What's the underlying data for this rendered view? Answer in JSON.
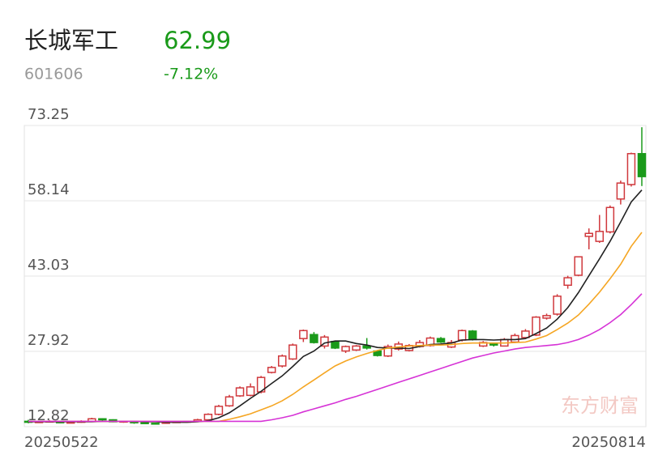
{
  "header": {
    "name": "长城军工",
    "price": "62.99",
    "code": "601606",
    "change": "-7.12%"
  },
  "chart_data": {
    "type": "candlestick",
    "categories": [
      "20250522",
      null,
      null,
      null,
      null,
      null,
      null,
      null,
      null,
      null,
      null,
      null,
      null,
      null,
      null,
      null,
      null,
      null,
      null,
      null,
      null,
      null,
      null,
      null,
      null,
      null,
      null,
      null,
      null,
      null,
      null,
      null,
      null,
      null,
      null,
      null,
      null,
      null,
      null,
      null,
      null,
      null,
      null,
      null,
      null,
      null,
      null,
      null,
      null,
      null,
      null,
      null,
      null,
      null,
      null,
      null,
      null,
      null,
      "20250814"
    ],
    "open": [
      13.9,
      13.7,
      13.8,
      13.9,
      13.6,
      13.7,
      13.9,
      14.4,
      14.2,
      13.8,
      13.9,
      13.6,
      13.5,
      13.5,
      13.7,
      13.8,
      13.9,
      14.2,
      15.3,
      17.0,
      19.0,
      19.1,
      19.8,
      23.7,
      25.0,
      26.4,
      30.5,
      31.3,
      29.0,
      29.9,
      28.0,
      28.2,
      29.0,
      28.0,
      27.0,
      28.4,
      28.1,
      28.9,
      29.1,
      30.5,
      28.8,
      30.2,
      32.0,
      29.0,
      29.4,
      29.0,
      29.8,
      30.7,
      31.2,
      34.6,
      35.4,
      41.2,
      43.2,
      51.0,
      50.0,
      51.9,
      58.5,
      61.4,
      67.6
    ],
    "close": [
      13.7,
      13.8,
      13.9,
      13.6,
      13.7,
      13.9,
      14.4,
      14.2,
      13.8,
      13.9,
      13.6,
      13.5,
      13.4,
      13.7,
      13.8,
      13.9,
      14.2,
      15.3,
      16.9,
      18.8,
      20.6,
      20.8,
      22.7,
      24.7,
      27.0,
      29.2,
      32.1,
      29.7,
      30.8,
      28.6,
      28.9,
      29.0,
      28.6,
      27.1,
      28.9,
      29.4,
      29.1,
      29.7,
      30.6,
      29.8,
      29.7,
      32.1,
      30.3,
      29.7,
      29.2,
      30.3,
      31.1,
      32.0,
      34.8,
      35.1,
      39.0,
      42.7,
      46.9,
      51.6,
      52.0,
      56.8,
      61.7,
      67.6,
      62.99
    ],
    "high": [
      14.2,
      14.0,
      14.1,
      14.0,
      13.9,
      14.1,
      14.6,
      14.5,
      14.3,
      14.0,
      14.0,
      13.7,
      13.6,
      13.8,
      13.9,
      14.0,
      14.4,
      15.5,
      17.2,
      19.2,
      20.9,
      21.5,
      23.0,
      25.0,
      27.3,
      29.5,
      32.3,
      31.8,
      31.2,
      30.0,
      29.1,
      29.2,
      30.6,
      28.2,
      29.3,
      29.9,
      29.4,
      30.2,
      30.9,
      30.8,
      30.2,
      32.3,
      32.2,
      30.0,
      29.6,
      30.6,
      31.5,
      32.4,
      35.0,
      35.5,
      39.4,
      43.1,
      47.0,
      52.6,
      55.3,
      57.2,
      62.2,
      67.8,
      72.9
    ],
    "low": [
      13.5,
      13.6,
      13.7,
      13.5,
      13.5,
      13.6,
      13.8,
      14.0,
      13.7,
      13.6,
      13.4,
      13.4,
      13.3,
      13.4,
      13.6,
      13.7,
      13.8,
      14.0,
      15.1,
      16.8,
      18.8,
      18.9,
      19.5,
      23.5,
      24.7,
      26.2,
      29.8,
      29.5,
      28.5,
      28.4,
      27.6,
      28.0,
      28.3,
      26.9,
      26.8,
      28.1,
      27.9,
      28.7,
      28.9,
      29.6,
      28.6,
      29.9,
      30.1,
      28.8,
      28.9,
      28.9,
      29.6,
      30.5,
      31.0,
      34.3,
      35.1,
      40.5,
      43.0,
      48.4,
      49.7,
      51.6,
      57.4,
      61.0,
      61.1
    ],
    "up_color": "#d0383c",
    "down_color": "#1a9a1a",
    "series": [
      {
        "color": "#222222",
        "values": [
          13.8,
          13.8,
          13.8,
          13.8,
          13.8,
          13.8,
          13.8,
          13.9,
          13.9,
          13.9,
          13.9,
          13.8,
          13.8,
          13.7,
          13.7,
          13.7,
          13.8,
          14.0,
          14.6,
          15.6,
          17.0,
          18.5,
          19.9,
          21.5,
          23.0,
          24.9,
          26.9,
          28.0,
          29.6,
          30.0,
          30.0,
          29.5,
          29.2,
          28.7,
          28.6,
          28.6,
          28.5,
          28.9,
          29.3,
          29.4,
          29.6,
          30.2,
          30.3,
          30.3,
          30.2,
          30.3,
          30.3,
          30.5,
          31.5,
          32.6,
          34.4,
          36.7,
          39.7,
          43.1,
          46.5,
          50.0,
          53.9,
          57.9,
          60.3
        ]
      },
      {
        "color": "#f5a623",
        "values": [
          13.9,
          13.9,
          13.9,
          13.9,
          13.9,
          13.9,
          13.9,
          13.9,
          13.9,
          13.9,
          13.9,
          13.9,
          13.9,
          13.9,
          13.9,
          13.9,
          13.9,
          13.9,
          13.9,
          14.3,
          14.8,
          15.4,
          16.2,
          17.0,
          18.0,
          19.3,
          20.8,
          22.2,
          23.6,
          25.0,
          26.0,
          26.8,
          27.5,
          28.1,
          28.6,
          28.8,
          29.0,
          29.1,
          29.2,
          29.2,
          29.3,
          29.5,
          29.6,
          29.6,
          29.6,
          29.6,
          29.7,
          29.8,
          30.4,
          31.1,
          32.3,
          33.6,
          35.2,
          37.4,
          39.8,
          42.5,
          45.4,
          49.0,
          51.8
        ]
      },
      {
        "color": "#d633d6",
        "values": [
          13.9,
          13.9,
          13.9,
          13.9,
          13.9,
          13.9,
          13.9,
          13.9,
          13.9,
          13.9,
          13.9,
          13.9,
          13.9,
          13.9,
          13.9,
          13.9,
          13.9,
          13.9,
          13.9,
          13.9,
          13.9,
          13.9,
          13.9,
          14.2,
          14.6,
          15.1,
          15.8,
          16.4,
          17.0,
          17.6,
          18.3,
          18.9,
          19.6,
          20.3,
          21.0,
          21.7,
          22.4,
          23.1,
          23.8,
          24.5,
          25.2,
          25.9,
          26.6,
          27.1,
          27.6,
          28.0,
          28.4,
          28.7,
          28.9,
          29.1,
          29.3,
          29.7,
          30.3,
          31.2,
          32.3,
          33.7,
          35.3,
          37.3,
          39.5
        ]
      }
    ],
    "ylim": [
      12.82,
      73.25
    ],
    "yticks": [
      12.82,
      27.92,
      43.03,
      58.14,
      73.25
    ],
    "grid": true,
    "watermark": "东方财富"
  }
}
